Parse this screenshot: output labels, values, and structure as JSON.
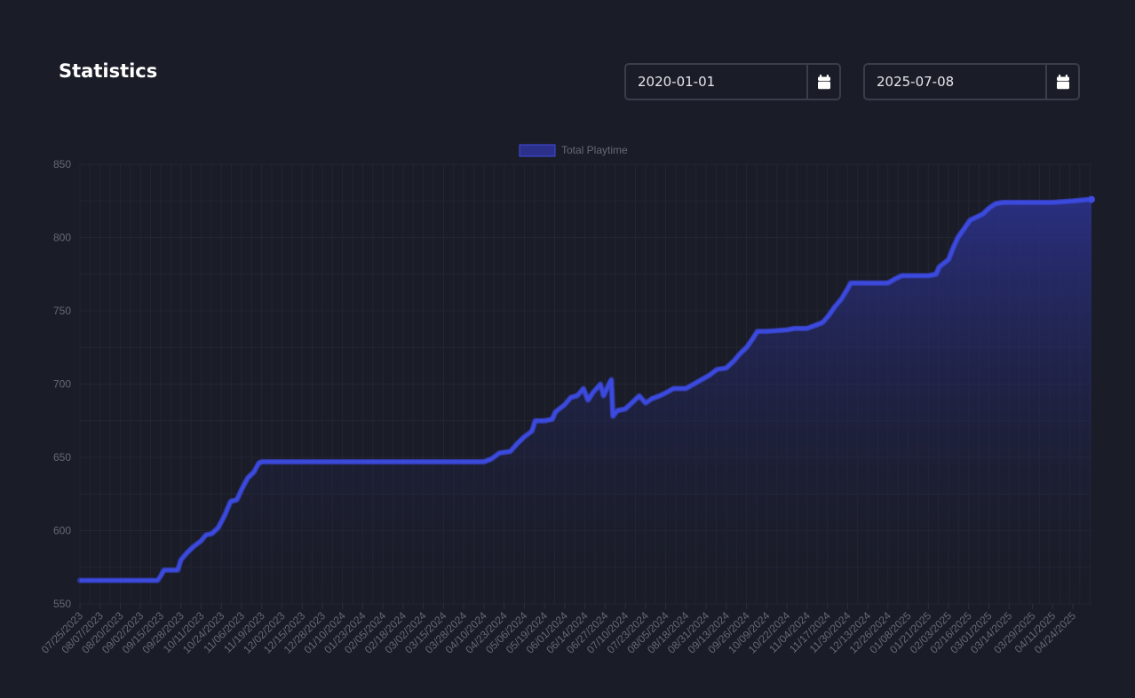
{
  "page": {
    "title": "Statistics"
  },
  "filters": {
    "start_date": "2020-01-01",
    "end_date": "2025-07-08",
    "start_icon": "calendar-icon",
    "end_icon": "calendar-icon"
  },
  "colors": {
    "background": "#1a1c27",
    "line": "#3d4be0",
    "fill_top": "#2b318a",
    "grid": "#232633",
    "text_muted": "#666976"
  },
  "chart_data": {
    "type": "area",
    "legend": {
      "label": "Total Playtime",
      "position": "top"
    },
    "ylim": [
      550,
      850
    ],
    "y_ticks": [
      550,
      600,
      650,
      700,
      750,
      800,
      850
    ],
    "xlim": [
      "2023-07-25",
      "2025-05-06"
    ],
    "x_ticks": [
      "07/25/2023",
      "08/07/2023",
      "08/20/2023",
      "09/02/2023",
      "09/15/2023",
      "09/28/2023",
      "10/11/2023",
      "10/24/2023",
      "11/06/2023",
      "11/19/2023",
      "12/02/2023",
      "12/15/2023",
      "12/28/2023",
      "01/10/2024",
      "01/23/2024",
      "02/05/2024",
      "02/18/2024",
      "03/02/2024",
      "03/15/2024",
      "03/28/2024",
      "04/10/2024",
      "04/23/2024",
      "05/06/2024",
      "05/19/2024",
      "06/01/2024",
      "06/14/2024",
      "06/27/2024",
      "07/10/2024",
      "07/23/2024",
      "08/05/2024",
      "08/18/2024",
      "08/31/2024",
      "09/13/2024",
      "09/26/2024",
      "10/09/2024",
      "10/22/2024",
      "11/04/2024",
      "11/17/2024",
      "11/30/2024",
      "12/13/2024",
      "12/26/2024",
      "01/08/2025",
      "01/21/2025",
      "02/03/2025",
      "02/16/2025",
      "03/01/2025",
      "03/14/2025",
      "03/29/2025",
      "04/11/2025",
      "04/24/2025"
    ],
    "grid": true,
    "series": [
      {
        "name": "Total Playtime",
        "points": [
          [
            "2023-07-25",
            566
          ],
          [
            "2023-08-20",
            566
          ],
          [
            "2023-09-13",
            566
          ],
          [
            "2023-09-15",
            569
          ],
          [
            "2023-09-17",
            573
          ],
          [
            "2023-09-26",
            573
          ],
          [
            "2023-09-28",
            580
          ],
          [
            "2023-10-02",
            585
          ],
          [
            "2023-10-06",
            589
          ],
          [
            "2023-10-11",
            593
          ],
          [
            "2023-10-14",
            597
          ],
          [
            "2023-10-18",
            598
          ],
          [
            "2023-10-22",
            602
          ],
          [
            "2023-10-26",
            610
          ],
          [
            "2023-10-30",
            620
          ],
          [
            "2023-11-03",
            621
          ],
          [
            "2023-11-06",
            628
          ],
          [
            "2023-11-10",
            636
          ],
          [
            "2023-11-14",
            640
          ],
          [
            "2023-11-17",
            646
          ],
          [
            "2023-11-19",
            647
          ],
          [
            "2024-01-10",
            647
          ],
          [
            "2024-04-10",
            647
          ],
          [
            "2024-04-15",
            649
          ],
          [
            "2024-04-20",
            653
          ],
          [
            "2024-04-27",
            654
          ],
          [
            "2024-05-02",
            660
          ],
          [
            "2024-05-06",
            664
          ],
          [
            "2024-05-11",
            668
          ],
          [
            "2024-05-13",
            675
          ],
          [
            "2024-05-19",
            675
          ],
          [
            "2024-05-24",
            676
          ],
          [
            "2024-05-26",
            681
          ],
          [
            "2024-06-01",
            686
          ],
          [
            "2024-06-05",
            691
          ],
          [
            "2024-06-09",
            692
          ],
          [
            "2024-06-13",
            697
          ],
          [
            "2024-06-16",
            689
          ],
          [
            "2024-06-19",
            694
          ],
          [
            "2024-06-24",
            700
          ],
          [
            "2024-06-26",
            692
          ],
          [
            "2024-06-29",
            699
          ],
          [
            "2024-07-01",
            703
          ],
          [
            "2024-07-02",
            678
          ],
          [
            "2024-07-05",
            682
          ],
          [
            "2024-07-10",
            683
          ],
          [
            "2024-07-15",
            688
          ],
          [
            "2024-07-19",
            692
          ],
          [
            "2024-07-23",
            687
          ],
          [
            "2024-07-27",
            690
          ],
          [
            "2024-08-01",
            692
          ],
          [
            "2024-08-05",
            694
          ],
          [
            "2024-08-10",
            697
          ],
          [
            "2024-08-18",
            697
          ],
          [
            "2024-08-23",
            700
          ],
          [
            "2024-08-28",
            703
          ],
          [
            "2024-09-02",
            706
          ],
          [
            "2024-09-07",
            710
          ],
          [
            "2024-09-13",
            711
          ],
          [
            "2024-09-18",
            716
          ],
          [
            "2024-09-22",
            721
          ],
          [
            "2024-09-26",
            725
          ],
          [
            "2024-09-30",
            731
          ],
          [
            "2024-10-03",
            736
          ],
          [
            "2024-10-09",
            736
          ],
          [
            "2024-10-22",
            737
          ],
          [
            "2024-10-27",
            738
          ],
          [
            "2024-11-04",
            738
          ],
          [
            "2024-11-09",
            740
          ],
          [
            "2024-11-14",
            742
          ],
          [
            "2024-11-18",
            747
          ],
          [
            "2024-11-22",
            753
          ],
          [
            "2024-11-26",
            758
          ],
          [
            "2024-11-30",
            765
          ],
          [
            "2024-12-02",
            769
          ],
          [
            "2024-12-13",
            769
          ],
          [
            "2024-12-26",
            769
          ],
          [
            "2024-12-31",
            772
          ],
          [
            "2025-01-04",
            774
          ],
          [
            "2025-01-21",
            774
          ],
          [
            "2025-01-26",
            775
          ],
          [
            "2025-01-28",
            780
          ],
          [
            "2025-02-03",
            785
          ],
          [
            "2025-02-06",
            793
          ],
          [
            "2025-02-09",
            800
          ],
          [
            "2025-02-13",
            806
          ],
          [
            "2025-02-17",
            812
          ],
          [
            "2025-02-21",
            814
          ],
          [
            "2025-02-25",
            816
          ],
          [
            "2025-03-01",
            820
          ],
          [
            "2025-03-05",
            823
          ],
          [
            "2025-03-10",
            824
          ],
          [
            "2025-03-14",
            824
          ],
          [
            "2025-04-11",
            824
          ],
          [
            "2025-04-24",
            825
          ],
          [
            "2025-05-04",
            826
          ],
          [
            "2025-05-06",
            826
          ]
        ]
      }
    ]
  }
}
